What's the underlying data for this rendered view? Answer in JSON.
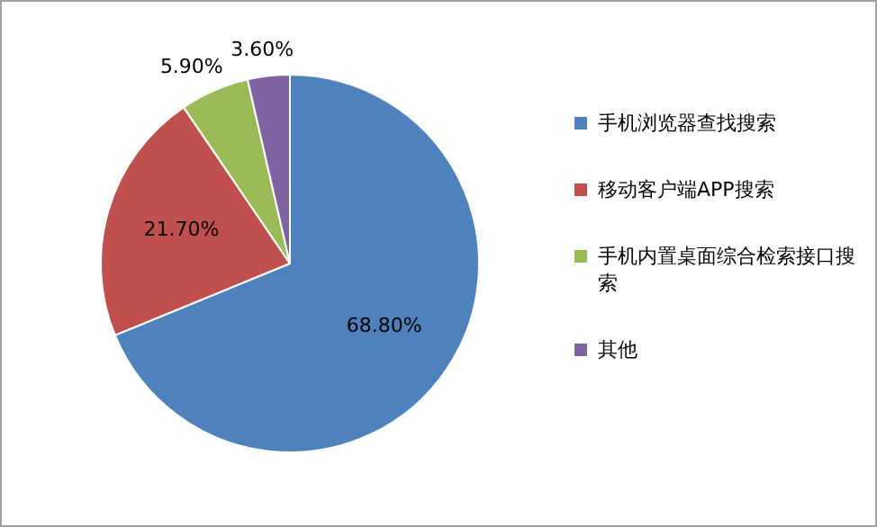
{
  "chart_data": {
    "type": "pie",
    "categories": [
      "手机浏览器查找搜索",
      "移动客户端APP搜索",
      "手机内置桌面综合检索接口搜索",
      "其他"
    ],
    "values": [
      68.8,
      21.7,
      5.9,
      3.6
    ],
    "colors": [
      "#4f81bd",
      "#c0504d",
      "#9bbb59",
      "#8064a2"
    ],
    "value_labels": [
      "68.80%",
      "21.70%",
      "5.90%",
      "3.60%"
    ],
    "legend": "right"
  }
}
